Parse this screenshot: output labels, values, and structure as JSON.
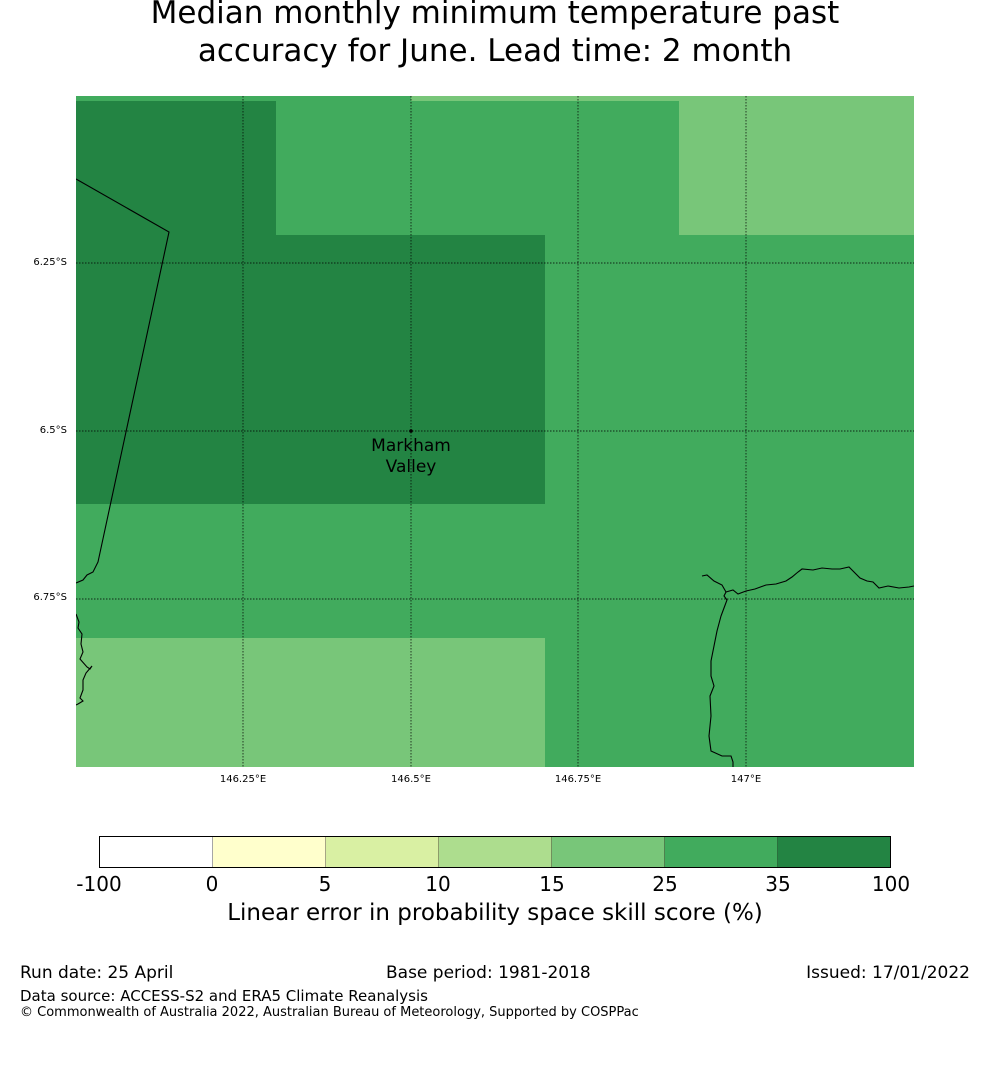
{
  "title": {
    "line1": "Median monthly minimum temperature past",
    "line2": "accuracy for June. Lead time: 2 month"
  },
  "map": {
    "lat_labels": [
      "6.25°S",
      "6.5°S",
      "6.75°S"
    ],
    "lon_labels": [
      "146.25°E",
      "146.5°E",
      "146.75°E",
      "147°E"
    ],
    "place": {
      "line1": "Markham",
      "line2": "Valley"
    }
  },
  "legend": {
    "colors": [
      "#ffffff",
      "#ffffcc",
      "#d9f0a3",
      "#addd8e",
      "#78c679",
      "#41ab5d",
      "#238443"
    ],
    "ticks": [
      "-100",
      "0",
      "5",
      "10",
      "15",
      "25",
      "35",
      "100"
    ],
    "label": "Linear error in probability space skill score (%)"
  },
  "footer": {
    "run_date": "Run date: 25 April",
    "base_period": "Base period: 1981-2018",
    "issued": "Issued: 17/01/2022",
    "data_source": "Data source: ACCESS-S2 and ERA5 Climate Reanalysis",
    "copyright": "© Commonwealth of Australia 2022, Australian Bureau of Meteorology, Supported by COSPPac"
  }
}
